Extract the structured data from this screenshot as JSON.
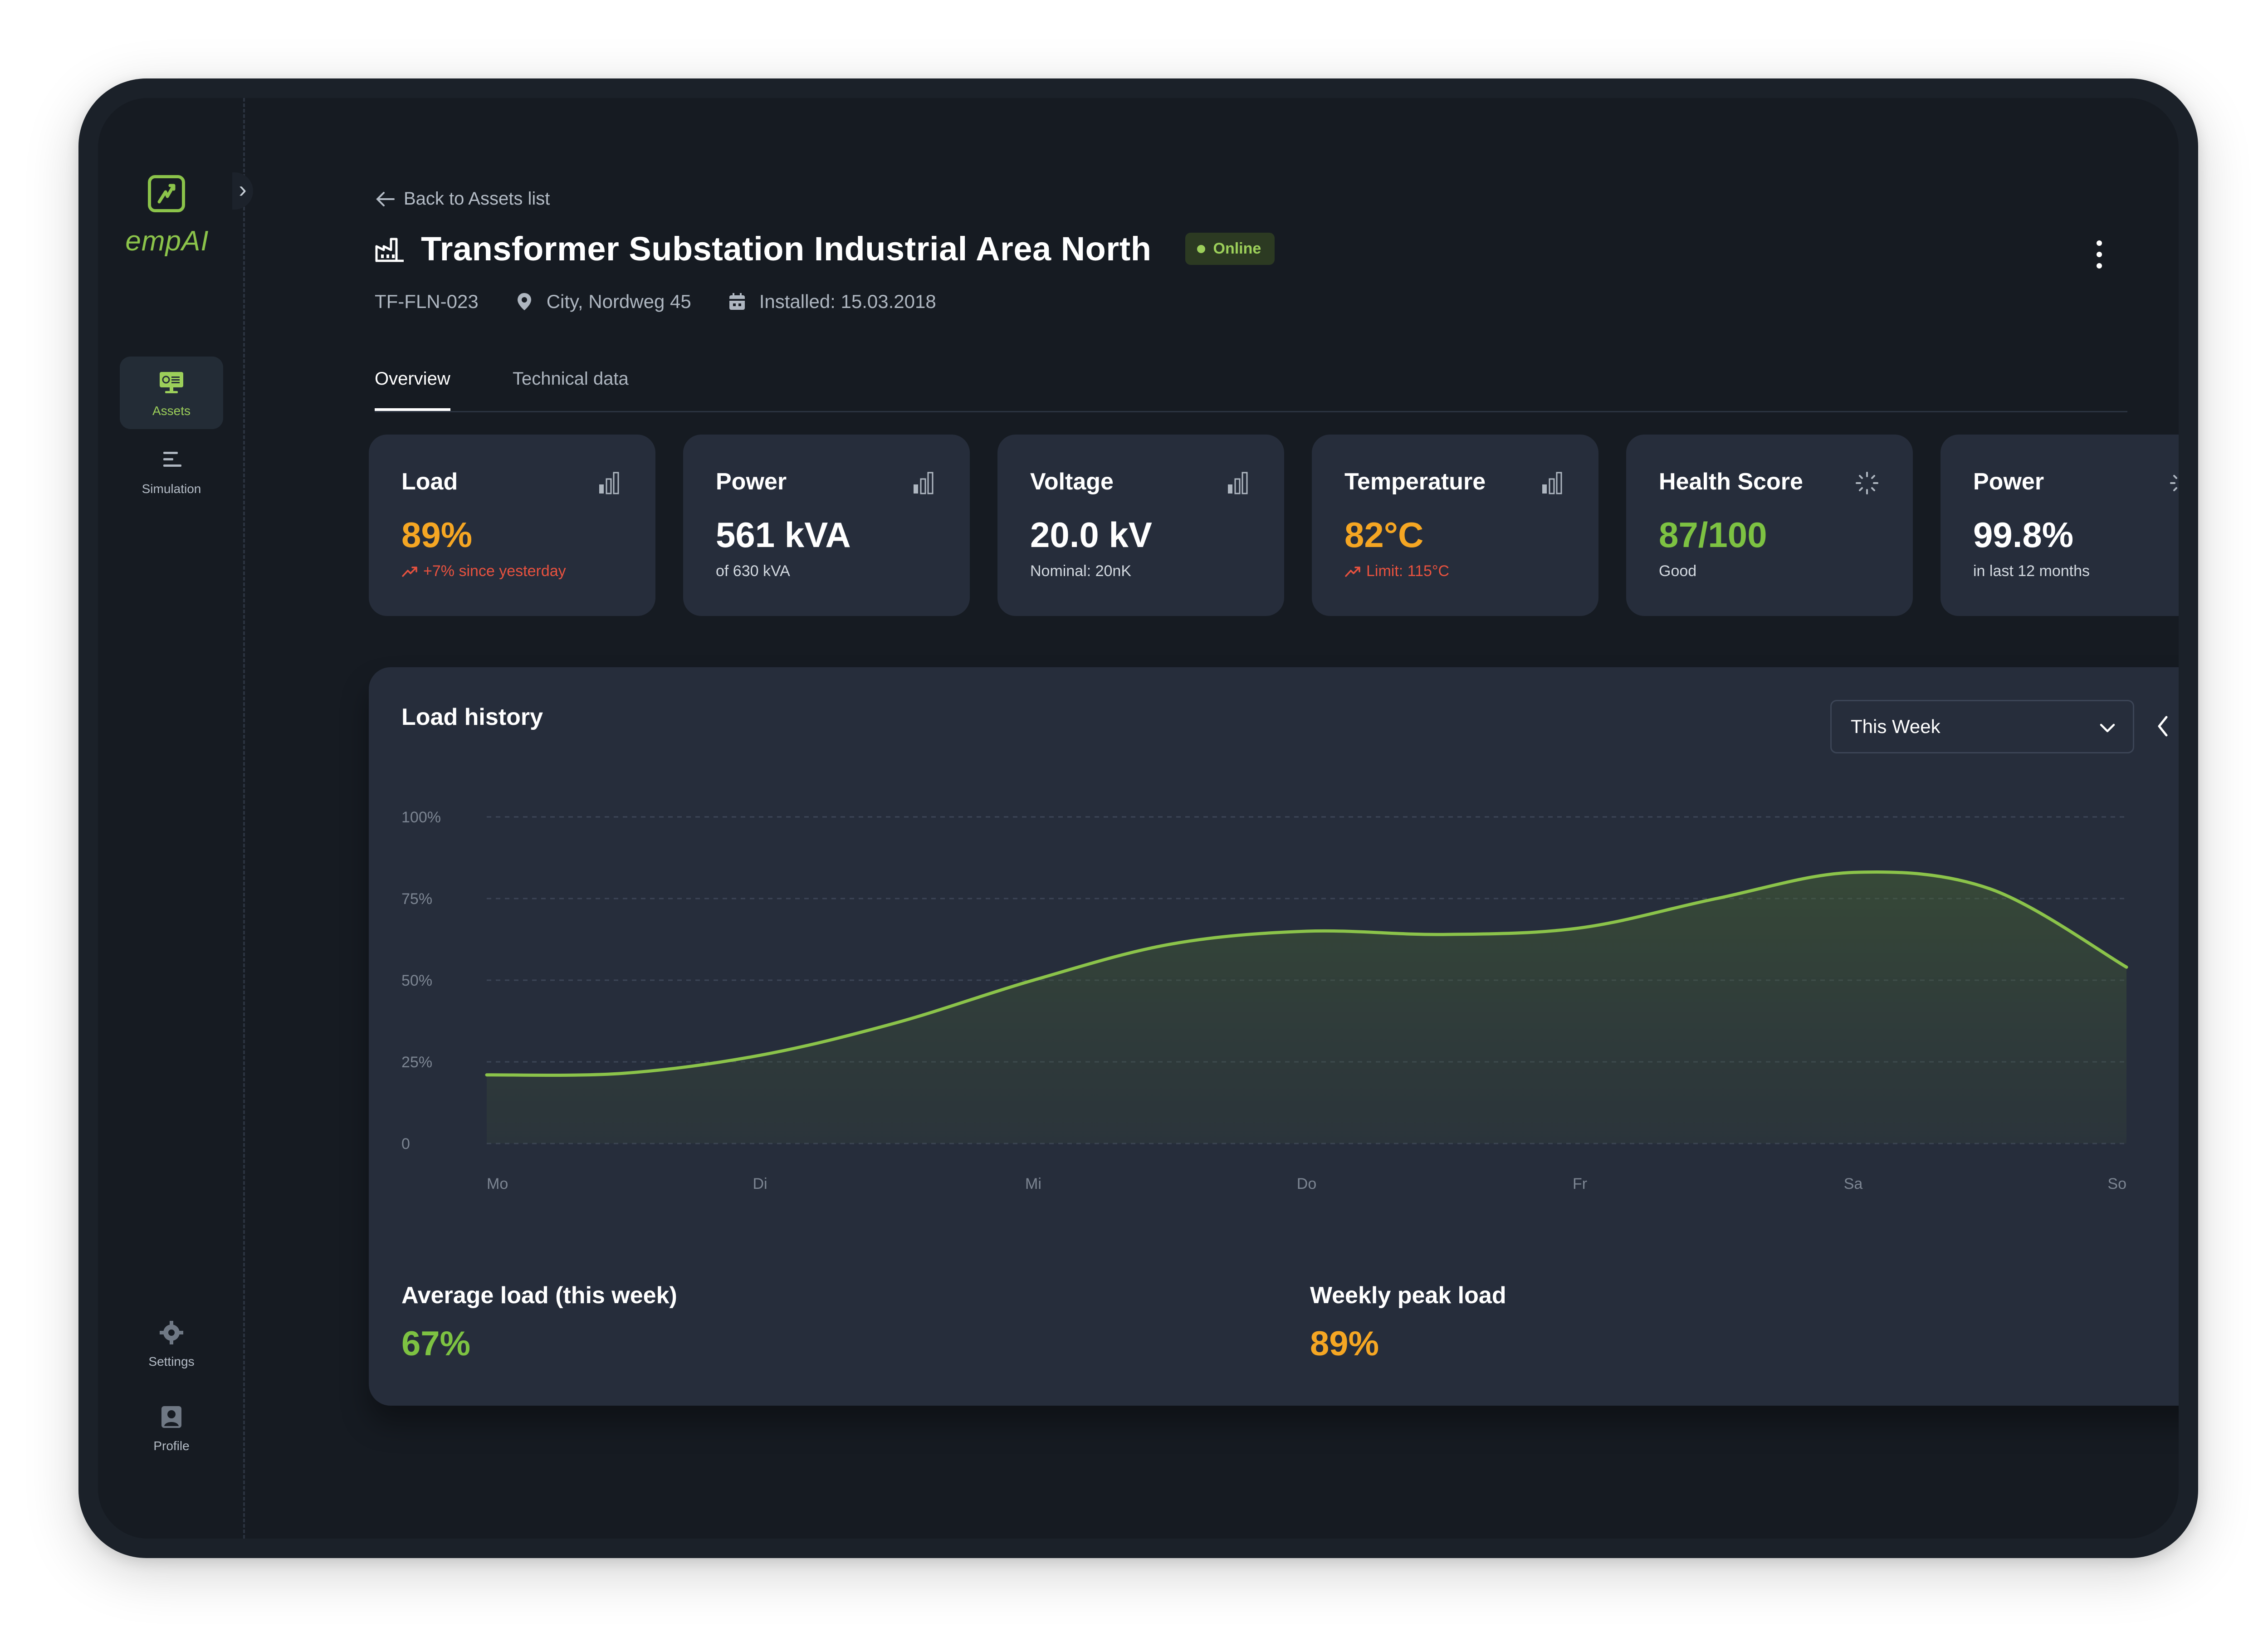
{
  "app": {
    "brand": "empAI"
  },
  "sidebar": {
    "items": [
      {
        "label": "Assets",
        "icon": "assets-icon",
        "active": true
      },
      {
        "label": "Simulation",
        "icon": "simulation-icon",
        "active": false
      }
    ],
    "bottom_items": [
      {
        "label": "Settings",
        "icon": "gear-icon"
      },
      {
        "label": "Profile",
        "icon": "user-icon"
      }
    ]
  },
  "header": {
    "back_label": "Back to Assets list",
    "title": "Transformer Substation Industrial Area North",
    "status": "Online",
    "asset_id": "TF-FLN-023",
    "location": "City, Nordweg 45",
    "installed": "Installed: 15.03.2018"
  },
  "tabs": [
    {
      "label": "Overview",
      "active": true
    },
    {
      "label": "Technical data",
      "active": false
    }
  ],
  "cards": [
    {
      "title": "Load",
      "value": "89%",
      "sub": "+7% since yesterday",
      "icon": "bar-chart-icon",
      "value_color": "#f5a623",
      "sub_trend": true
    },
    {
      "title": "Power",
      "value": "561 kVA",
      "sub": "of 630 kVA",
      "icon": "bar-chart-icon"
    },
    {
      "title": "Voltage",
      "value": "20.0 kV",
      "sub": "Nominal: 20nK",
      "icon": "bar-chart-icon"
    },
    {
      "title": "Temperature",
      "value": "82°C",
      "sub": "Limit: 115°C",
      "icon": "bar-chart-icon",
      "value_color": "#f5a623",
      "sub_trend": true
    },
    {
      "title": "Health Score",
      "value": "87/100",
      "sub": "Good",
      "icon": "loading-icon",
      "value_color": "#7dc242"
    },
    {
      "title": "Power",
      "value": "99.8%",
      "sub": "in last 12 months",
      "icon": "loading-icon"
    }
  ],
  "load_history": {
    "title": "Load history",
    "range": "This Week",
    "average_label": "Average load (this week)",
    "average_value": "67%",
    "peak_label": "Weekly peak load",
    "peak_value": "89%"
  },
  "chart_data": {
    "type": "area",
    "title": "Load history",
    "categories": [
      "Mo",
      "Di",
      "Mi",
      "Do",
      "Fr",
      "Sa",
      "So"
    ],
    "y_ticks": [
      "100%",
      "75%",
      "50%",
      "25%",
      "0"
    ],
    "ylim": [
      0,
      100
    ],
    "grid": true,
    "line_color": "#8bc34a",
    "points": [
      {
        "x": 0,
        "y": 21
      },
      {
        "x": 0.5,
        "y": 21.5
      },
      {
        "x": 1,
        "y": 27
      },
      {
        "x": 1.5,
        "y": 37
      },
      {
        "x": 2,
        "y": 50
      },
      {
        "x": 2.5,
        "y": 61
      },
      {
        "x": 3,
        "y": 65
      },
      {
        "x": 3.5,
        "y": 64
      },
      {
        "x": 4,
        "y": 66
      },
      {
        "x": 4.5,
        "y": 75
      },
      {
        "x": 5,
        "y": 83
      },
      {
        "x": 5.5,
        "y": 78
      },
      {
        "x": 6,
        "y": 54
      }
    ]
  }
}
